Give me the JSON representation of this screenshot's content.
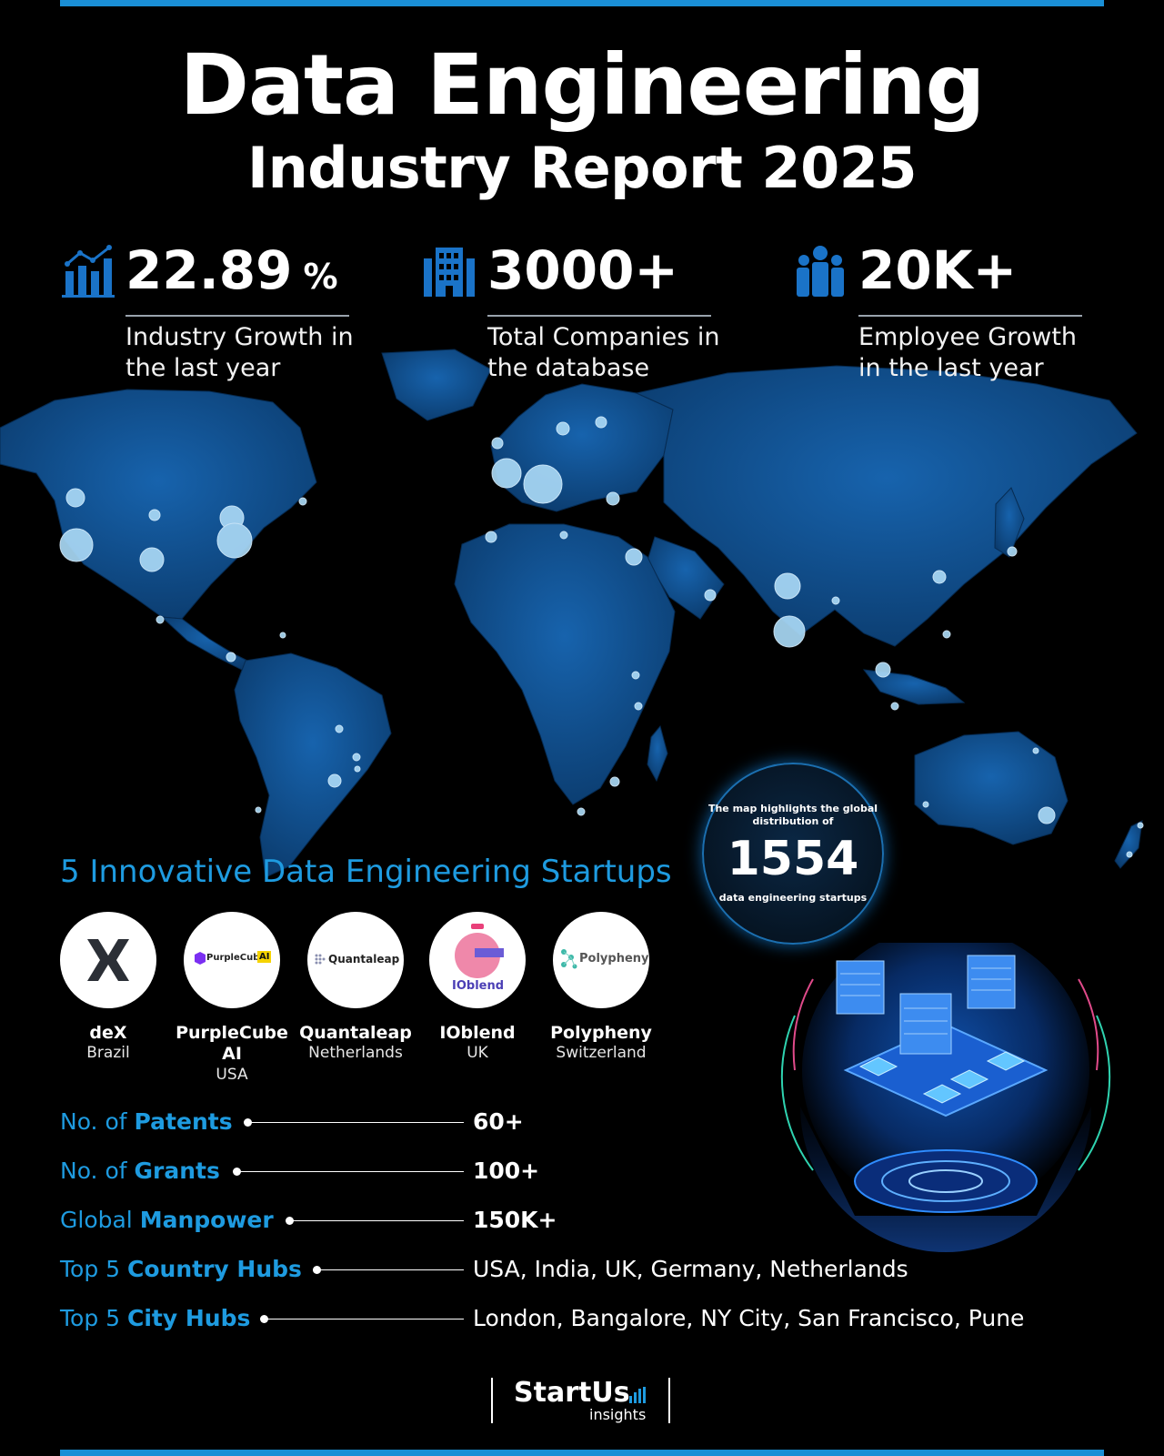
{
  "header": {
    "title_line1": "Data Engineering",
    "title_line2": "Industry Report 2025"
  },
  "stats": [
    {
      "icon": "growth-chart-icon",
      "value": "22.89",
      "unit": "%",
      "label": "Industry Growth in the last year"
    },
    {
      "icon": "building-icon",
      "value": "3000+",
      "label": "Total Companies in the database"
    },
    {
      "icon": "people-icon",
      "value": "20K+",
      "label": "Employee Growth in the last year"
    }
  ],
  "map_badge": {
    "line1": "The map highlights the global distribution of",
    "number": "1554",
    "line2": "data engineering startups"
  },
  "startups": {
    "title": "5 Innovative Data Engineering Startups",
    "items": [
      {
        "name": "deX",
        "country": "Brazil",
        "logo_text": ""
      },
      {
        "name": "PurpleCube AI",
        "country": "USA",
        "logo_text": "PurpleCube",
        "logo_badge": "AI"
      },
      {
        "name": "Quantaleap",
        "country": "Netherlands",
        "logo_text": "Quantaleap"
      },
      {
        "name": "IOblend",
        "country": "UK",
        "logo_text": "IOblend"
      },
      {
        "name": "Polypheny",
        "country": "Switzerland",
        "logo_text": "Polypheny"
      }
    ]
  },
  "metrics": [
    {
      "prefix": "No. of",
      "bold": "Patents",
      "value": "60+"
    },
    {
      "prefix": "No. of",
      "bold": "Grants",
      "value": "100+"
    },
    {
      "prefix": "Global",
      "bold": "Manpower",
      "value": "150K+"
    },
    {
      "prefix": "Top 5",
      "bold": "Country Hubs",
      "value": "USA, India, UK, Germany, Netherlands"
    },
    {
      "prefix": "Top 5",
      "bold": "City Hubs",
      "value": "London, Bangalore, NY City, San Francisco, Pune"
    }
  ],
  "brand": {
    "name": "StartUs",
    "sub": "insights"
  },
  "colors": {
    "accent": "#1e9be0",
    "background": "#000000",
    "map_land": "#0f4a86",
    "map_dot": "#a9d8f5"
  }
}
